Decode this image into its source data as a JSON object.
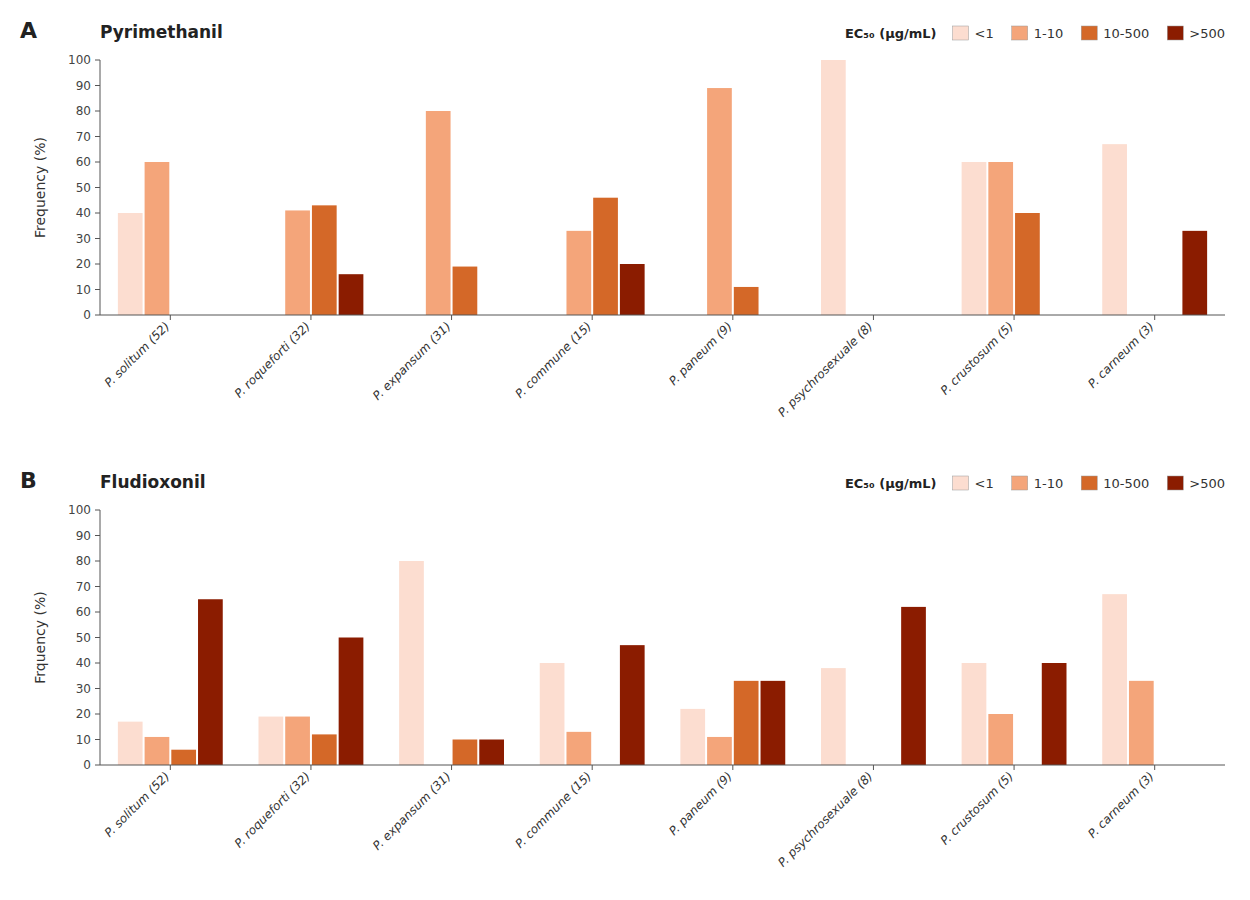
{
  "chart_data": [
    {
      "type": "bar",
      "title": "Pyrimethanil",
      "y_label": "Frequency (%)",
      "annotations": [
        "A"
      ],
      "categories": [
        "P. solitum (52)",
        "P. roqueforti (32)",
        "P. expansum (31)",
        "P. commune (15)",
        "P. paneum (9)",
        "P. psychrosexuale (8)",
        "P. crustosum (5)",
        "P. carneum (3)"
      ],
      "legend_title": "EC₅₀ (μg/mL)",
      "series": [
        {
          "name": "<1",
          "color": "#FCDDD0",
          "values": [
            40,
            0,
            0,
            0,
            0,
            100,
            60,
            67
          ]
        },
        {
          "name": "1-10",
          "color": "#F4A57A",
          "values": [
            60,
            41,
            80,
            33,
            89,
            0,
            60,
            0
          ]
        },
        {
          "name": "10-500",
          "color": "#D46828",
          "values": [
            0,
            43,
            19,
            46,
            11,
            0,
            40,
            0
          ]
        },
        {
          "name": ">500",
          "color": "#8B1C00",
          "values": [
            0,
            16,
            0,
            20,
            0,
            0,
            0,
            33
          ]
        }
      ],
      "ylim": [
        0,
        100
      ],
      "yticks": [
        0,
        10,
        20,
        30,
        40,
        50,
        60,
        70,
        80,
        90,
        100
      ],
      "grid": false,
      "legend": "upper right"
    },
    {
      "type": "bar",
      "title": "Fludioxonil",
      "y_label": "Frquency (%)",
      "annotations": [
        "B"
      ],
      "categories": [
        "P. solitum (52)",
        "P. roqueforti (32)",
        "P. expansum (31)",
        "P. commune (15)",
        "P. paneum (9)",
        "P. psychrosexuale (8)",
        "P. crustosum (5)",
        "P. carneum (3)"
      ],
      "legend_title": "EC₅₀ (μg/mL)",
      "series": [
        {
          "name": "<1",
          "color": "#FCDDD0",
          "values": [
            17,
            19,
            80,
            40,
            22,
            38,
            40,
            67
          ]
        },
        {
          "name": "1-10",
          "color": "#F4A57A",
          "values": [
            11,
            19,
            0,
            13,
            11,
            0,
            20,
            33
          ]
        },
        {
          "name": "10-500",
          "color": "#D46828",
          "values": [
            6,
            12,
            10,
            0,
            33,
            0,
            0,
            0
          ]
        },
        {
          "name": ">500",
          "color": "#8B1C00",
          "values": [
            65,
            50,
            10,
            47,
            33,
            62,
            40,
            0
          ]
        }
      ],
      "ylim": [
        0,
        100
      ],
      "yticks": [
        0,
        10,
        20,
        30,
        40,
        50,
        60,
        70,
        80,
        90,
        100
      ],
      "grid": false,
      "legend": "upper right"
    }
  ]
}
